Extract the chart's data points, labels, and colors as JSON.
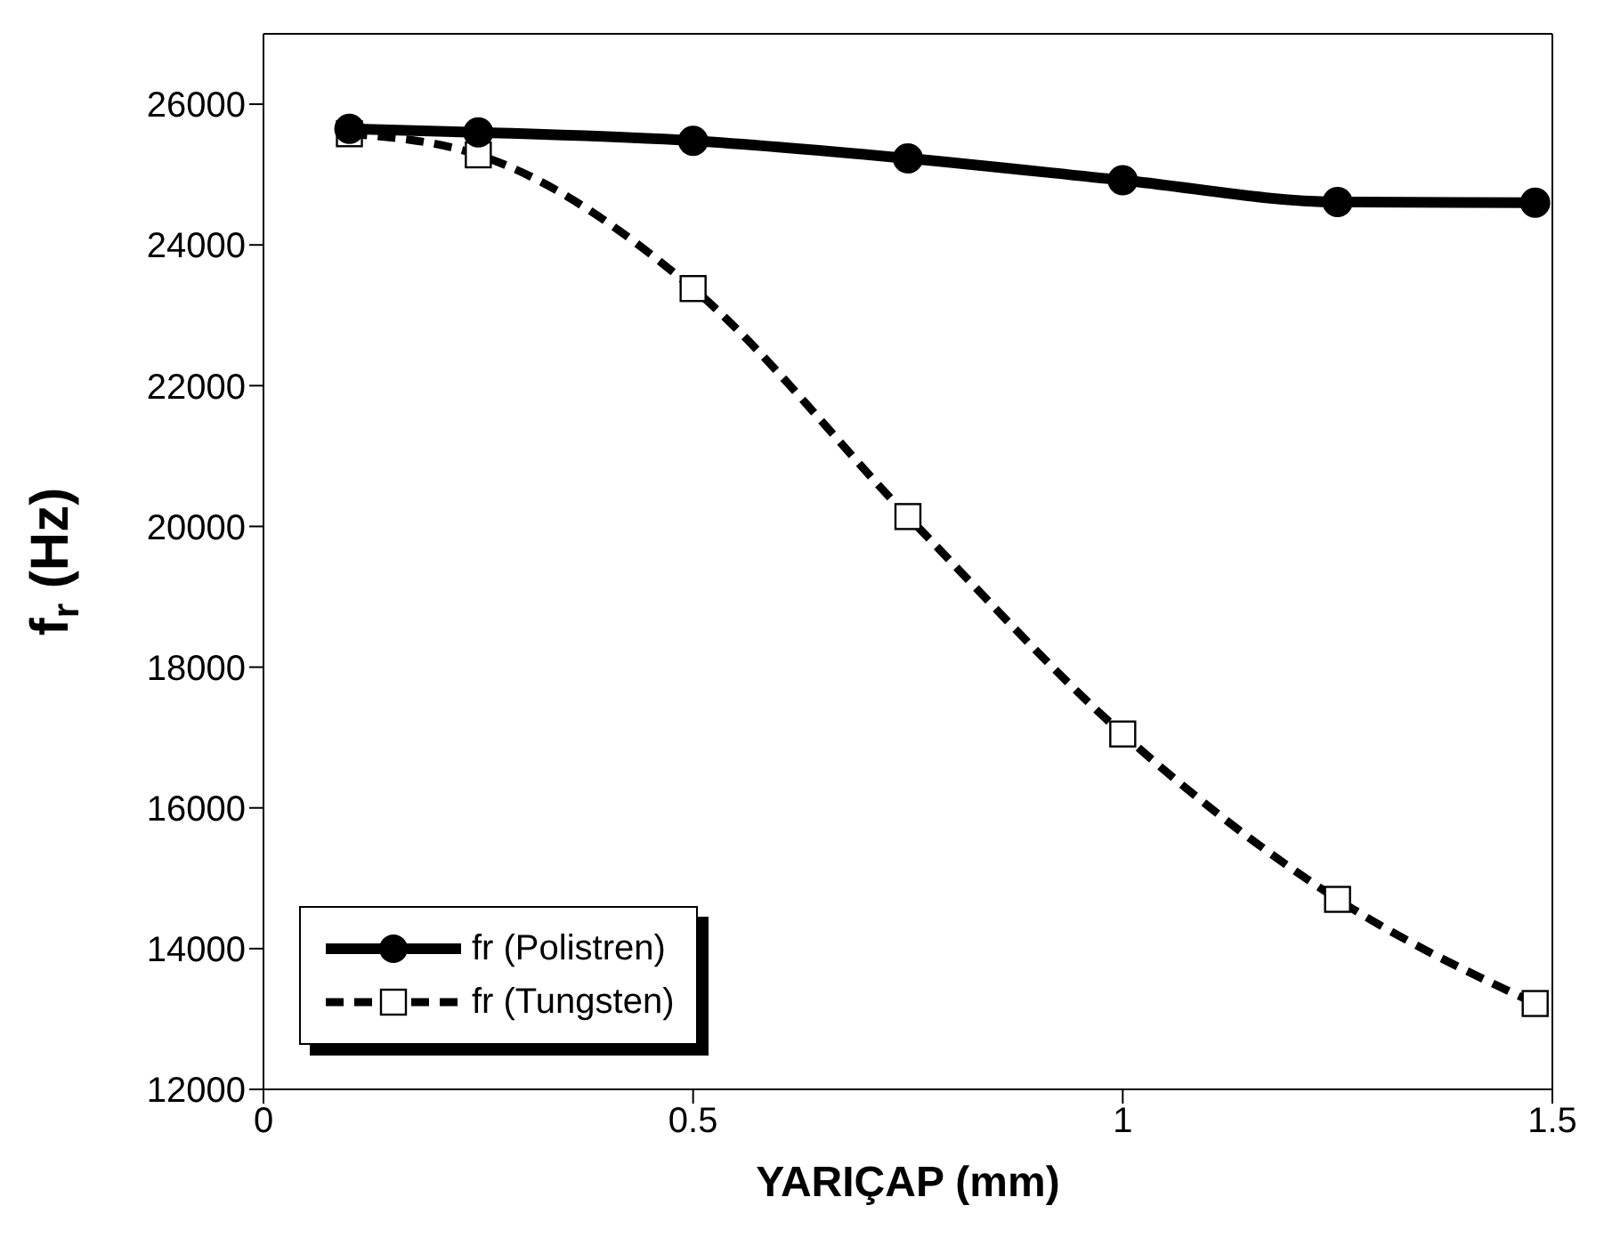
{
  "chart_data": {
    "type": "line",
    "xlabel": "YARIÇAP (mm)",
    "ylabel": "f$_{r}$ (Hz)",
    "x": [
      0.1,
      0.25,
      0.5,
      0.75,
      1,
      1.25,
      1.48
    ],
    "series": [
      {
        "name": "fr (Polistren)",
        "color": "#000000",
        "marker": "circle",
        "line_style": "solid",
        "values": [
          25650,
          25600,
          25480,
          25230,
          24920,
          24610,
          24600
        ]
      },
      {
        "name": "fr (Tungsten)",
        "color": "#000000",
        "marker": "square",
        "line_style": "dashed",
        "values": [
          25580,
          25280,
          23380,
          20140,
          17050,
          14700,
          13220
        ]
      }
    ],
    "xlim": [
      0,
      1.5
    ],
    "xticks": [
      0,
      0.5,
      1,
      1.5
    ],
    "ylim": [
      12000,
      27000
    ],
    "yticks": [
      12000,
      14000,
      16000,
      18000,
      20000,
      22000,
      24000,
      26000
    ],
    "grid": false,
    "legend": "bottom left"
  }
}
